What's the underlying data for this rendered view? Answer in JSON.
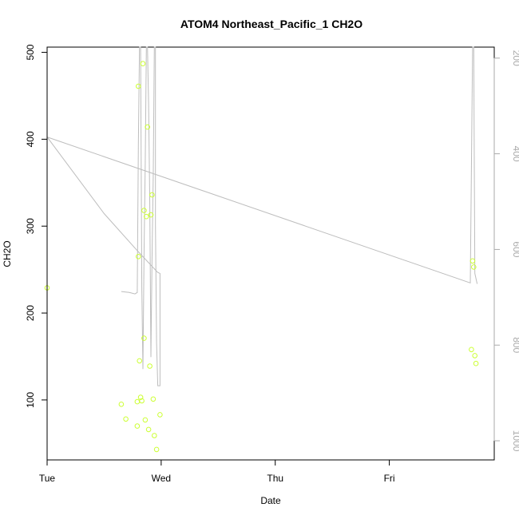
{
  "chart_data": {
    "type": "scatter",
    "title": "ATOM4 Northeast_Pacific_1 CH2O",
    "xlabel": "Date",
    "ylabel": "CH2O",
    "xlim": [
      0,
      3.92
    ],
    "x_ticks": [
      {
        "value": 0,
        "label": "Tue"
      },
      {
        "value": 1,
        "label": "Wed"
      },
      {
        "value": 2,
        "label": "Thu"
      },
      {
        "value": 3,
        "label": "Fri"
      }
    ],
    "ylim": [
      31,
      506
    ],
    "y_ticks": [
      100,
      200,
      300,
      400,
      500
    ],
    "y2lim": [
      1040,
      177
    ],
    "y2_ticks": [
      200,
      400,
      600,
      800,
      1000
    ],
    "grid": false,
    "colors": {
      "points": "#ccff33",
      "profile": "#bdbdbd"
    },
    "series": [
      {
        "kind": "points",
        "points": [
          [
            0.0,
            229
          ],
          [
            0.65,
            95
          ],
          [
            0.69,
            78
          ],
          [
            0.79,
            70
          ],
          [
            0.79,
            98
          ],
          [
            0.8,
            461
          ],
          [
            0.8,
            265
          ],
          [
            0.81,
            145
          ],
          [
            0.82,
            103
          ],
          [
            0.83,
            99
          ],
          [
            0.84,
            487
          ],
          [
            0.85,
            318
          ],
          [
            0.85,
            171
          ],
          [
            0.86,
            77
          ],
          [
            0.87,
            311
          ],
          [
            0.88,
            414
          ],
          [
            0.89,
            66
          ],
          [
            0.9,
            139
          ],
          [
            0.91,
            313
          ],
          [
            0.92,
            336
          ],
          [
            0.93,
            101
          ],
          [
            0.94,
            59
          ],
          [
            0.96,
            43
          ],
          [
            0.99,
            83
          ],
          [
            3.72,
            158
          ],
          [
            3.73,
            260
          ],
          [
            3.74,
            253
          ],
          [
            3.75,
            151
          ],
          [
            3.76,
            142
          ]
        ]
      },
      {
        "kind": "profile-line",
        "axis": "right",
        "points": [
          [
            0.0,
            365
          ],
          [
            0.5,
            525
          ],
          [
            0.8,
            605
          ],
          [
            0.97,
            648
          ],
          [
            0.99,
            650
          ],
          [
            0.99,
            885
          ],
          [
            0.97,
            885
          ],
          [
            0.96,
            795
          ],
          [
            0.95,
            550
          ],
          [
            0.95,
            177
          ],
          [
            0.94,
            177
          ],
          [
            0.93,
            450
          ],
          [
            0.92,
            620
          ],
          [
            0.91,
            825
          ],
          [
            0.9,
            505
          ],
          [
            0.89,
            295
          ],
          [
            0.88,
            177
          ],
          [
            0.87,
            177
          ],
          [
            0.86,
            420
          ],
          [
            0.85,
            610
          ],
          [
            0.84,
            850
          ],
          [
            0.83,
            680
          ],
          [
            0.82,
            177
          ],
          [
            0.81,
            177
          ],
          [
            0.8,
            380
          ],
          [
            0.79,
            690
          ],
          [
            0.77,
            693
          ],
          [
            0.72,
            690
          ],
          [
            0.65,
            688
          ]
        ]
      },
      {
        "kind": "profile-line",
        "axis": "right",
        "points": [
          [
            0.0,
            365
          ],
          [
            3.71,
            670
          ],
          [
            3.73,
            177
          ],
          [
            3.74,
            177
          ],
          [
            3.75,
            650
          ],
          [
            3.77,
            672
          ]
        ]
      }
    ]
  }
}
